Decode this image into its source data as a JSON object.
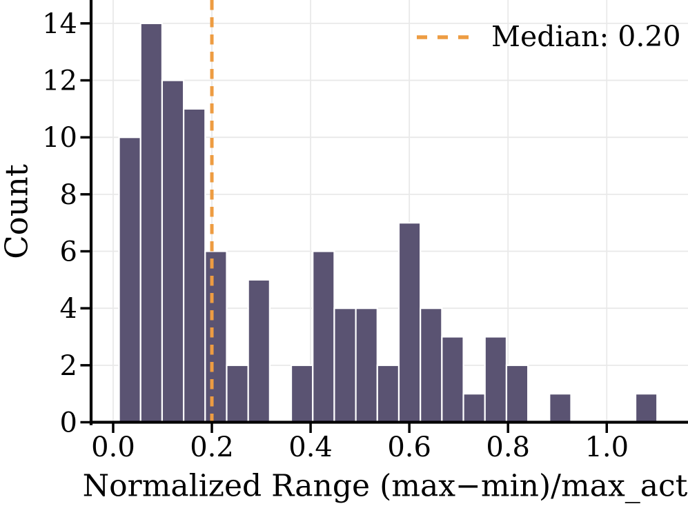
{
  "chart_data": {
    "type": "bar",
    "subtype": "histogram",
    "title": "",
    "xlabel": "Normalized Range (max−min)/max_act",
    "ylabel": "Count",
    "legend": {
      "label": "Median: 0.20",
      "position": "upper right"
    },
    "median_line": {
      "value": 0.2,
      "color": "#ed9c42",
      "style": "dashed"
    },
    "bin_start": 0.012,
    "bin_width": 0.0436,
    "counts": [
      10,
      14,
      12,
      11,
      6,
      2,
      5,
      0,
      2,
      6,
      4,
      4,
      2,
      7,
      4,
      3,
      1,
      3,
      2,
      0,
      1,
      0,
      0,
      0,
      1
    ],
    "x_ticks": [
      0.0,
      0.2,
      0.4,
      0.6,
      0.8,
      1.0
    ],
    "x_tick_labels": [
      "0.0",
      "0.2",
      "0.4",
      "0.6",
      "0.8",
      "1.0"
    ],
    "y_ticks": [
      0,
      2,
      4,
      6,
      8,
      10,
      12,
      14
    ],
    "y_tick_labels": [
      "0",
      "2",
      "4",
      "6",
      "8",
      "10",
      "12",
      "14"
    ],
    "xlim": [
      -0.0447,
      1.1646
    ],
    "ylim": [
      0,
      14.82
    ],
    "grid": true,
    "bar_color": "#5a5372",
    "bar_edge_color": "#ffffff",
    "grid_color": "#e9e9e9",
    "axis_color": "#000000",
    "background": "#ffffff"
  }
}
